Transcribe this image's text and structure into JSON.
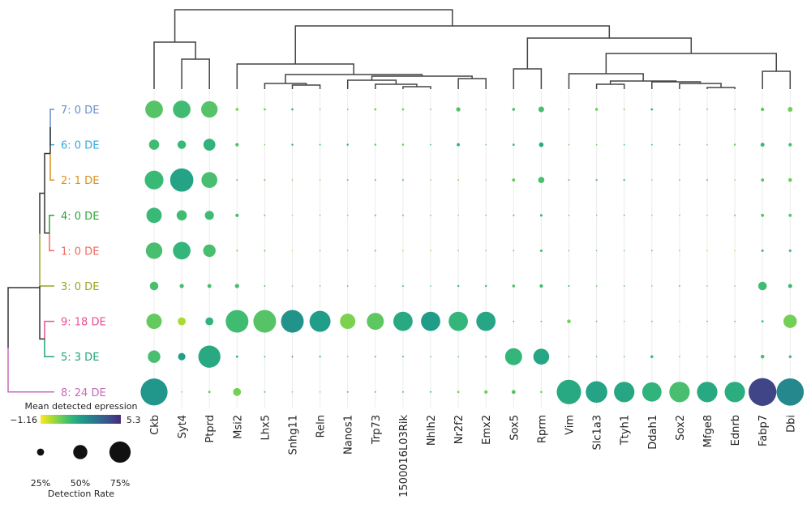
{
  "chart_data": {
    "type": "dotplot",
    "title": "",
    "genes": [
      "Ckb",
      "Syt4",
      "Ptprd",
      "Msi2",
      "Lhx5",
      "Snhg11",
      "Reln",
      "Nanos1",
      "Trp73",
      "1500016L03Rik",
      "Nhlh2",
      "Nr2f2",
      "Emx2",
      "Sox5",
      "Rprm",
      "Vim",
      "Slc1a3",
      "Ttyh1",
      "Ddah1",
      "Sox2",
      "Mfge8",
      "Ednrb",
      "Fabp7",
      "Dbi"
    ],
    "clusters": [
      {
        "label": "7: 0 DE",
        "color": "#6a8ec8"
      },
      {
        "label": "6: 0 DE",
        "color": "#33aadb"
      },
      {
        "label": "2: 1 DE",
        "color": "#d9921f"
      },
      {
        "label": "4: 0 DE",
        "color": "#2ea43a"
      },
      {
        "label": "1: 0 DE",
        "color": "#ee6a60"
      },
      {
        "label": "3: 0 DE",
        "color": "#9aa41e"
      },
      {
        "label": "9: 18 DE",
        "color": "#e94f95"
      },
      {
        "label": "5: 3 DE",
        "color": "#1fa37a"
      },
      {
        "label": "8: 24 DE",
        "color": "#c56bb8"
      }
    ],
    "detection_rate": [
      [
        0.62,
        0.62,
        0.58,
        0.1,
        0.08,
        0.08,
        0.05,
        0.03,
        0.08,
        0.08,
        0.04,
        0.15,
        0.04,
        0.1,
        0.2,
        0.06,
        0.1,
        0.06,
        0.08,
        0.06,
        0.05,
        0.06,
        0.12,
        0.17
      ],
      [
        0.36,
        0.3,
        0.42,
        0.12,
        0.03,
        0.07,
        0.06,
        0.07,
        0.07,
        0.07,
        0.04,
        0.11,
        0.04,
        0.08,
        0.16,
        0.04,
        0.04,
        0.04,
        0.05,
        0.04,
        0.04,
        0.07,
        0.14,
        0.12
      ],
      [
        0.66,
        0.82,
        0.56,
        0.06,
        0.06,
        0.03,
        0.03,
        0.06,
        0.06,
        0.06,
        0.04,
        0.06,
        0.03,
        0.11,
        0.22,
        0.06,
        0.07,
        0.07,
        0.04,
        0.04,
        0.06,
        0.04,
        0.11,
        0.13
      ],
      [
        0.54,
        0.36,
        0.32,
        0.12,
        0.06,
        0.03,
        0.03,
        0.03,
        0.06,
        0.06,
        0.03,
        0.04,
        0.04,
        0.06,
        0.09,
        0.04,
        0.04,
        0.05,
        0.04,
        0.04,
        0.04,
        0.06,
        0.11,
        0.11
      ],
      [
        0.58,
        0.62,
        0.44,
        0.06,
        0.06,
        0.02,
        0.03,
        0.03,
        0.06,
        0.02,
        0.02,
        0.03,
        0.03,
        0.03,
        0.09,
        0.03,
        0.04,
        0.04,
        0.05,
        0.02,
        0.02,
        0.02,
        0.09,
        0.09
      ],
      [
        0.3,
        0.15,
        0.14,
        0.15,
        0.06,
        0.02,
        0.02,
        0.04,
        0.02,
        0.06,
        0.02,
        0.07,
        0.07,
        0.1,
        0.12,
        0.06,
        0.05,
        0.05,
        0.02,
        0.05,
        0.02,
        0.04,
        0.3,
        0.14
      ],
      [
        0.54,
        0.28,
        0.28,
        0.8,
        0.8,
        0.8,
        0.74,
        0.54,
        0.6,
        0.68,
        0.68,
        0.68,
        0.68,
        0.04,
        0.05,
        0.13,
        0.05,
        0.05,
        0.05,
        0.05,
        0.05,
        0.05,
        0.08,
        0.47
      ],
      [
        0.44,
        0.26,
        0.78,
        0.08,
        0.06,
        0.03,
        0.06,
        0.02,
        0.06,
        0.06,
        0.02,
        0.02,
        0.02,
        0.6,
        0.56,
        0.05,
        0.04,
        0.04,
        0.1,
        0.02,
        0.02,
        0.05,
        0.13,
        0.1
      ],
      [
        0.95,
        0.04,
        0.08,
        0.28,
        0.06,
        0.02,
        0.02,
        0.06,
        0.06,
        0.06,
        0.06,
        0.08,
        0.12,
        0.14,
        0.08,
        0.86,
        0.76,
        0.72,
        0.68,
        0.72,
        0.72,
        0.72,
        0.98,
        0.96
      ]
    ],
    "mean_expression": [
      [
        0.8,
        1.1,
        0.8,
        0.3,
        0.4,
        1.0,
        0.3,
        1.5,
        0.4,
        0.5,
        1.5,
        0.9,
        0.6,
        1.1,
        1.0,
        0.2,
        0.5,
        0.0,
        1.3,
        -0.3,
        0.9,
        0.6,
        0.7,
        0.4
      ],
      [
        1.1,
        1.2,
        1.4,
        0.9,
        0.5,
        1.3,
        0.8,
        1.4,
        0.6,
        0.6,
        1.5,
        1.4,
        0.7,
        1.1,
        1.7,
        0.5,
        0.5,
        1.2,
        1.3,
        1.1,
        0.5,
        0.5,
        1.2,
        1.0
      ],
      [
        1.2,
        1.9,
        1.0,
        0.5,
        0.4,
        0.2,
        0.0,
        0.4,
        0.6,
        0.7,
        0.2,
        0.0,
        0.1,
        0.6,
        1.0,
        0.7,
        0.7,
        0.8,
        0.1,
        0.9,
        0.5,
        0.2,
        0.8,
        0.5
      ],
      [
        1.2,
        1.1,
        1.1,
        1.0,
        0.5,
        -0.1,
        0.5,
        0.6,
        0.8,
        0.5,
        0.9,
        0.3,
        1.0,
        0.9,
        1.2,
        1.0,
        0.5,
        0.9,
        0.5,
        0.8,
        0.4,
        0.6,
        0.8,
        0.8
      ],
      [
        1.0,
        1.3,
        1.0,
        0.4,
        0.5,
        -0.5,
        0.5,
        0.5,
        0.7,
        0.0,
        0.0,
        0.5,
        0.5,
        1.4,
        0.9,
        0.9,
        0.7,
        0.7,
        0.9,
        0.4,
        -0.3,
        -0.4,
        0.9,
        1.1
      ],
      [
        1.0,
        1.0,
        1.0,
        1.0,
        0.6,
        0.5,
        0.9,
        1.5,
        0.2,
        0.8,
        1.2,
        1.2,
        1.3,
        1.0,
        1.1,
        1.2,
        0.6,
        0.8,
        0.5,
        1.3,
        0.5,
        0.6,
        1.1,
        1.2
      ],
      [
        0.6,
        -0.2,
        1.4,
        1.1,
        0.8,
        2.4,
        2.1,
        0.3,
        0.7,
        1.7,
        2.1,
        1.3,
        1.8,
        1.5,
        1.0,
        0.4,
        0.7,
        -0.3,
        0.7,
        -0.7,
        0.7,
        0.7,
        1.1,
        0.4
      ],
      [
        1.0,
        2.0,
        1.7,
        1.2,
        0.6,
        4.7,
        1.5,
        0.4,
        0.6,
        0.7,
        0.8,
        1.3,
        1.4,
        1.3,
        1.8,
        0.9,
        0.7,
        0.9,
        1.3,
        0.4,
        0.0,
        0.7,
        1.0,
        1.1
      ],
      [
        2.3,
        0.4,
        0.7,
        0.4,
        0.7,
        0.5,
        0.3,
        0.7,
        0.6,
        0.7,
        0.9,
        0.3,
        0.5,
        0.8,
        0.1,
        1.7,
        1.9,
        1.8,
        1.4,
        1.0,
        1.7,
        1.6,
        4.6,
        2.7
      ]
    ],
    "colorbar": {
      "title": "Mean detected epression",
      "min": -1.16,
      "max": 5.3,
      "min_label": "−1.16",
      "max_label": "5.3",
      "colormap": "viridis_reversed"
    },
    "size_legend": {
      "title": "Detection Rate",
      "values": [
        0.25,
        0.5,
        0.75
      ],
      "labels": [
        "25%",
        "50%",
        "75%"
      ]
    },
    "row_dendrogram": "hierarchical clustering of clusters (left)",
    "column_dendrogram": "hierarchical clustering of genes (top)"
  }
}
